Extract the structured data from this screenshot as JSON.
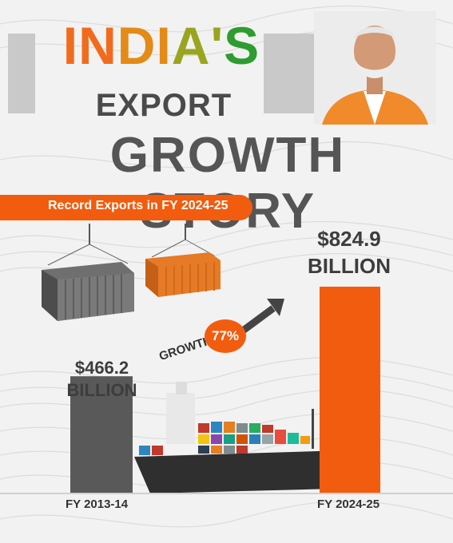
{
  "title": {
    "line1_parts": [
      "IN",
      "DI",
      "A'",
      "S"
    ],
    "line2": "EXPORT",
    "line3": "GROWTH STORY"
  },
  "subtitle": "Record Exports in FY 2024-25",
  "growth": {
    "label": "GROWTH",
    "percent": "77%"
  },
  "colors": {
    "accent": "#f25c0f",
    "bar_old": "#595959",
    "bar_new": "#f25c0f",
    "text": "#3d3d3d"
  },
  "chart_data": {
    "type": "bar",
    "categories": [
      "FY 2013-14",
      "FY 2024-25"
    ],
    "values": [
      466.2,
      824.9
    ],
    "data_labels": [
      [
        "$466.2",
        "BILLION"
      ],
      [
        "$824.9",
        "BILLION"
      ]
    ],
    "title": "",
    "xlabel": "",
    "ylabel": "",
    "unit": "USD billion",
    "ylim": [
      0,
      824.9
    ],
    "colors": [
      "#595959",
      "#f25c0f"
    ]
  }
}
